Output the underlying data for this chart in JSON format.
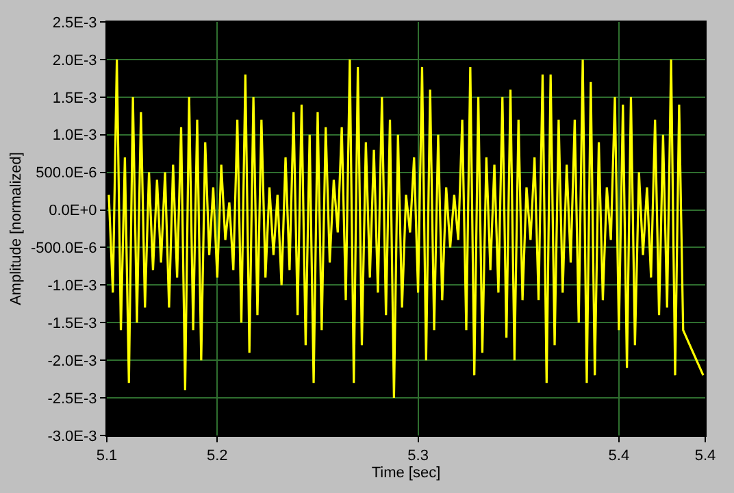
{
  "chart_data": {
    "type": "line",
    "xlabel": "Time [sec]",
    "ylabel": "Amplitude [normalized]",
    "xlim": [
      5.145,
      5.443
    ],
    "xticks": [
      {
        "value": 5.145,
        "label": "5.1"
      },
      5.2,
      5.3,
      5.4,
      {
        "value": 5.443,
        "label": "5.4"
      }
    ],
    "ylim": [
      -0.003,
      0.0025
    ],
    "yticks": [
      {
        "value": -0.003,
        "label": "-3.0E-3"
      },
      {
        "value": -0.0025,
        "label": "-2.5E-3"
      },
      {
        "value": -0.002,
        "label": "-2.0E-3"
      },
      {
        "value": -0.0015,
        "label": "-1.5E-3"
      },
      {
        "value": -0.001,
        "label": "-1.0E-3"
      },
      {
        "value": -0.0005,
        "label": "-500.0E-6"
      },
      {
        "value": 0,
        "label": "0.0E+0"
      },
      {
        "value": 0.0005,
        "label": "500.0E-6"
      },
      {
        "value": 0.001,
        "label": "1.0E-3"
      },
      {
        "value": 0.0015,
        "label": "1.5E-3"
      },
      {
        "value": 0.002,
        "label": "2.0E-3"
      },
      {
        "value": 0.0025,
        "label": "2.5E-3"
      }
    ],
    "grid": true,
    "marker": "none",
    "line_style": "solid",
    "series": [
      {
        "color": "#ffff00",
        "x": [
          5.146,
          5.148,
          5.15,
          5.152,
          5.154,
          5.156,
          5.158,
          5.16,
          5.162,
          5.164,
          5.166,
          5.168,
          5.17,
          5.172,
          5.174,
          5.176,
          5.178,
          5.18,
          5.182,
          5.184,
          5.186,
          5.188,
          5.19,
          5.192,
          5.194,
          5.196,
          5.198,
          5.2,
          5.202,
          5.204,
          5.206,
          5.208,
          5.21,
          5.212,
          5.214,
          5.216,
          5.218,
          5.22,
          5.222,
          5.224,
          5.226,
          5.228,
          5.23,
          5.232,
          5.234,
          5.236,
          5.238,
          5.24,
          5.242,
          5.244,
          5.246,
          5.248,
          5.25,
          5.252,
          5.254,
          5.256,
          5.258,
          5.26,
          5.262,
          5.264,
          5.266,
          5.268,
          5.27,
          5.272,
          5.274,
          5.276,
          5.278,
          5.28,
          5.282,
          5.284,
          5.286,
          5.288,
          5.29,
          5.292,
          5.294,
          5.296,
          5.298,
          5.3,
          5.302,
          5.304,
          5.306,
          5.308,
          5.31,
          5.312,
          5.314,
          5.316,
          5.318,
          5.32,
          5.322,
          5.324,
          5.326,
          5.328,
          5.33,
          5.332,
          5.334,
          5.336,
          5.338,
          5.34,
          5.342,
          5.344,
          5.346,
          5.348,
          5.35,
          5.352,
          5.354,
          5.356,
          5.358,
          5.36,
          5.362,
          5.364,
          5.366,
          5.368,
          5.37,
          5.372,
          5.374,
          5.376,
          5.378,
          5.38,
          5.382,
          5.384,
          5.386,
          5.388,
          5.39,
          5.392,
          5.394,
          5.396,
          5.398,
          5.4,
          5.402,
          5.404,
          5.406,
          5.408,
          5.41,
          5.412,
          5.414,
          5.416,
          5.418,
          5.42,
          5.422,
          5.424,
          5.426,
          5.428,
          5.43,
          5.432,
          5.442
        ],
        "values": [
          0.0002,
          -0.0011,
          0.002,
          -0.0016,
          0.0007,
          -0.0023,
          0.0015,
          -0.0015,
          0.0013,
          -0.0013,
          0.0005,
          -0.0008,
          0.0004,
          -0.0007,
          0.0005,
          -0.0013,
          0.0006,
          -0.0009,
          0.0011,
          -0.0024,
          0.0015,
          -0.0016,
          0.0012,
          -0.002,
          0.0009,
          -0.0006,
          0.0003,
          -0.0009,
          0.0006,
          -0.0004,
          0.0001,
          -0.0008,
          0.0012,
          -0.0015,
          0.0018,
          -0.0019,
          0.0015,
          -0.0014,
          0.0012,
          -0.0009,
          0.0003,
          -0.0006,
          0.0002,
          -0.001,
          0.0007,
          -0.0008,
          0.0013,
          -0.0014,
          0.0014,
          -0.0018,
          0.001,
          -0.0023,
          0.0013,
          -0.0016,
          0.0011,
          -0.0007,
          0.0004,
          -0.0003,
          0.0011,
          -0.0012,
          0.002,
          -0.0023,
          0.0019,
          -0.0018,
          0.0009,
          -0.0009,
          0.0008,
          -0.0011,
          0.0015,
          -0.0014,
          0.0012,
          -0.0025,
          0.001,
          -0.0013,
          0.0002,
          -0.0003,
          0.0007,
          -0.0011,
          0.0019,
          -0.002,
          0.0016,
          -0.0016,
          0.001,
          -0.0012,
          0.0003,
          -0.0005,
          0.0002,
          -0.0004,
          0.0012,
          -0.0016,
          0.0019,
          -0.0022,
          0.0015,
          -0.0019,
          0.0007,
          -0.0008,
          0.0006,
          -0.0011,
          0.0015,
          -0.0017,
          0.0016,
          -0.002,
          0.0012,
          -0.0012,
          0.0003,
          -0.0004,
          0.0007,
          -0.0012,
          0.0018,
          -0.0023,
          0.0018,
          -0.0018,
          0.0012,
          -0.0011,
          0.0006,
          -0.0007,
          0.0012,
          -0.0015,
          0.002,
          -0.0023,
          0.0017,
          -0.0022,
          0.0009,
          -0.0012,
          0.0003,
          -0.0004,
          0.0015,
          -0.0016,
          0.0014,
          -0.0021,
          0.0015,
          -0.0018,
          0.0005,
          -0.0006,
          0.0003,
          -0.0009,
          0.0012,
          -0.0014,
          0.001,
          -0.0013,
          0.002,
          -0.0022,
          0.0014,
          -0.0016,
          -0.0022
        ]
      }
    ]
  }
}
